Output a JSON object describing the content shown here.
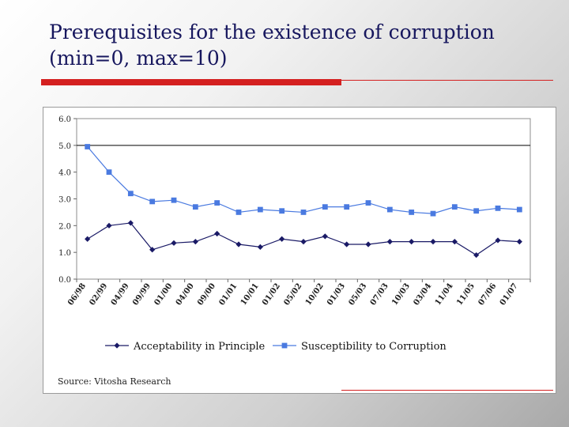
{
  "slide": {
    "title_line1": "Prerequisites for the existence of corruption",
    "title_line2": "(min=0, max=10)",
    "source": "Source: Vitosha Research",
    "accent_color": "#d42020",
    "title_color": "#17175e"
  },
  "chart_data": {
    "type": "line",
    "title": "",
    "xlabel": "",
    "ylabel": "",
    "ylim": [
      0,
      6
    ],
    "yticks": [
      "0.0",
      "1.0",
      "2.0",
      "3.0",
      "4.0",
      "5.0",
      "6.0"
    ],
    "reference_line": 5.0,
    "grid": false,
    "legend_position": "bottom",
    "x_tick_labels": [
      "06/98",
      "02/99",
      "04/99",
      "09/99",
      "01/00",
      "04/00",
      "09/00",
      "01/01",
      "10/01",
      "01/02",
      "05/02",
      "10/02",
      "01/03",
      "05/03",
      "07/03",
      "10/03",
      "03/04",
      "11/04",
      "11/05",
      "07/06",
      "01/07"
    ],
    "x": [
      "06/98",
      "02/99",
      "04/99",
      "09/99",
      "01/00",
      "04/00",
      "09/00",
      "01/01",
      "10/01",
      "01/02",
      "05/02",
      "10/02",
      "01/03",
      "05/03",
      "07/03",
      "10/03",
      "03/04",
      "11/04",
      "11/05",
      "07/06",
      "01/07"
    ],
    "series": [
      {
        "name": "Acceptability in Principle",
        "color": "#1a1a66",
        "marker": "diamond",
        "values": [
          1.5,
          2.0,
          2.1,
          1.1,
          1.35,
          1.4,
          1.7,
          1.3,
          1.2,
          1.5,
          1.4,
          1.6,
          1.3,
          1.3,
          1.4,
          1.4,
          1.4,
          1.4,
          0.9,
          1.45,
          1.4
        ]
      },
      {
        "name": "Susceptibility to Corruption",
        "color": "#4a7ae0",
        "marker": "square",
        "values": [
          4.95,
          4.0,
          3.2,
          2.9,
          2.95,
          2.7,
          2.85,
          2.5,
          2.6,
          2.55,
          2.5,
          2.7,
          2.7,
          2.85,
          2.6,
          2.5,
          2.45,
          2.7,
          2.55,
          2.65,
          2.6
        ]
      }
    ]
  }
}
